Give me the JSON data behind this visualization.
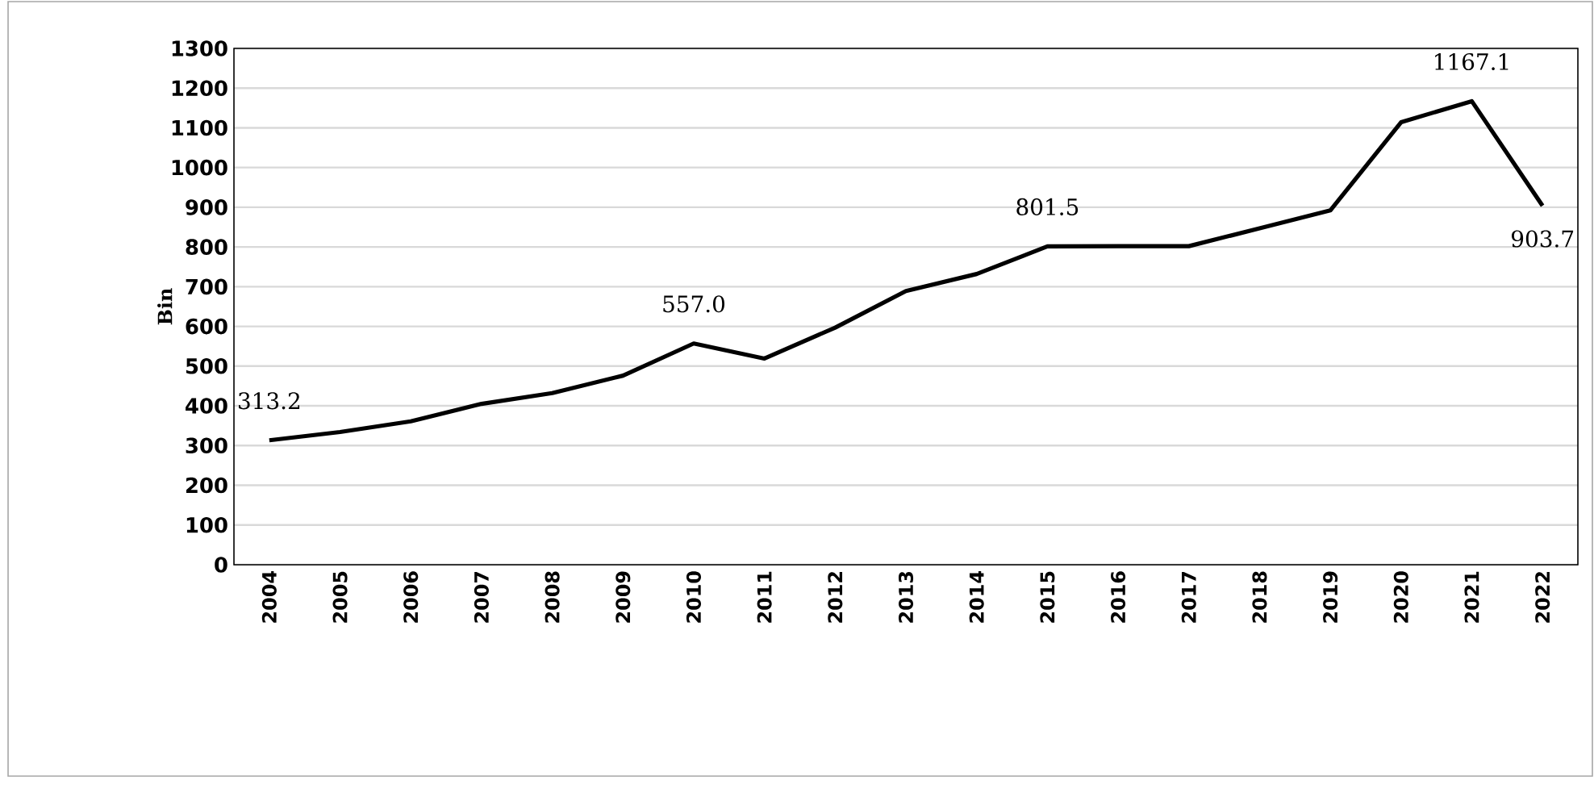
{
  "chart_data": {
    "type": "line",
    "ylabel": "Bin",
    "categories": [
      "2004",
      "2005",
      "2006",
      "2007",
      "2008",
      "2009",
      "2010",
      "2011",
      "2012",
      "2013",
      "2014",
      "2015",
      "2016",
      "2017",
      "2018",
      "2019",
      "2020",
      "2021",
      "2022"
    ],
    "values": [
      313.2,
      334,
      361,
      405,
      432,
      476,
      557.0,
      519,
      597,
      689,
      732,
      801.5,
      802,
      802,
      847,
      892,
      1114,
      1167.1,
      903.7
    ],
    "value_labels": [
      "313.2",
      null,
      null,
      null,
      null,
      null,
      "557.0",
      null,
      null,
      null,
      null,
      "801.5",
      null,
      null,
      null,
      null,
      null,
      "1167.1",
      "903.7"
    ],
    "color": "#000000",
    "ylim": [
      0,
      1300
    ],
    "yticks": [
      0,
      100,
      200,
      300,
      400,
      500,
      600,
      700,
      800,
      900,
      1000,
      1100,
      1200,
      1300
    ],
    "grid": "y"
  }
}
